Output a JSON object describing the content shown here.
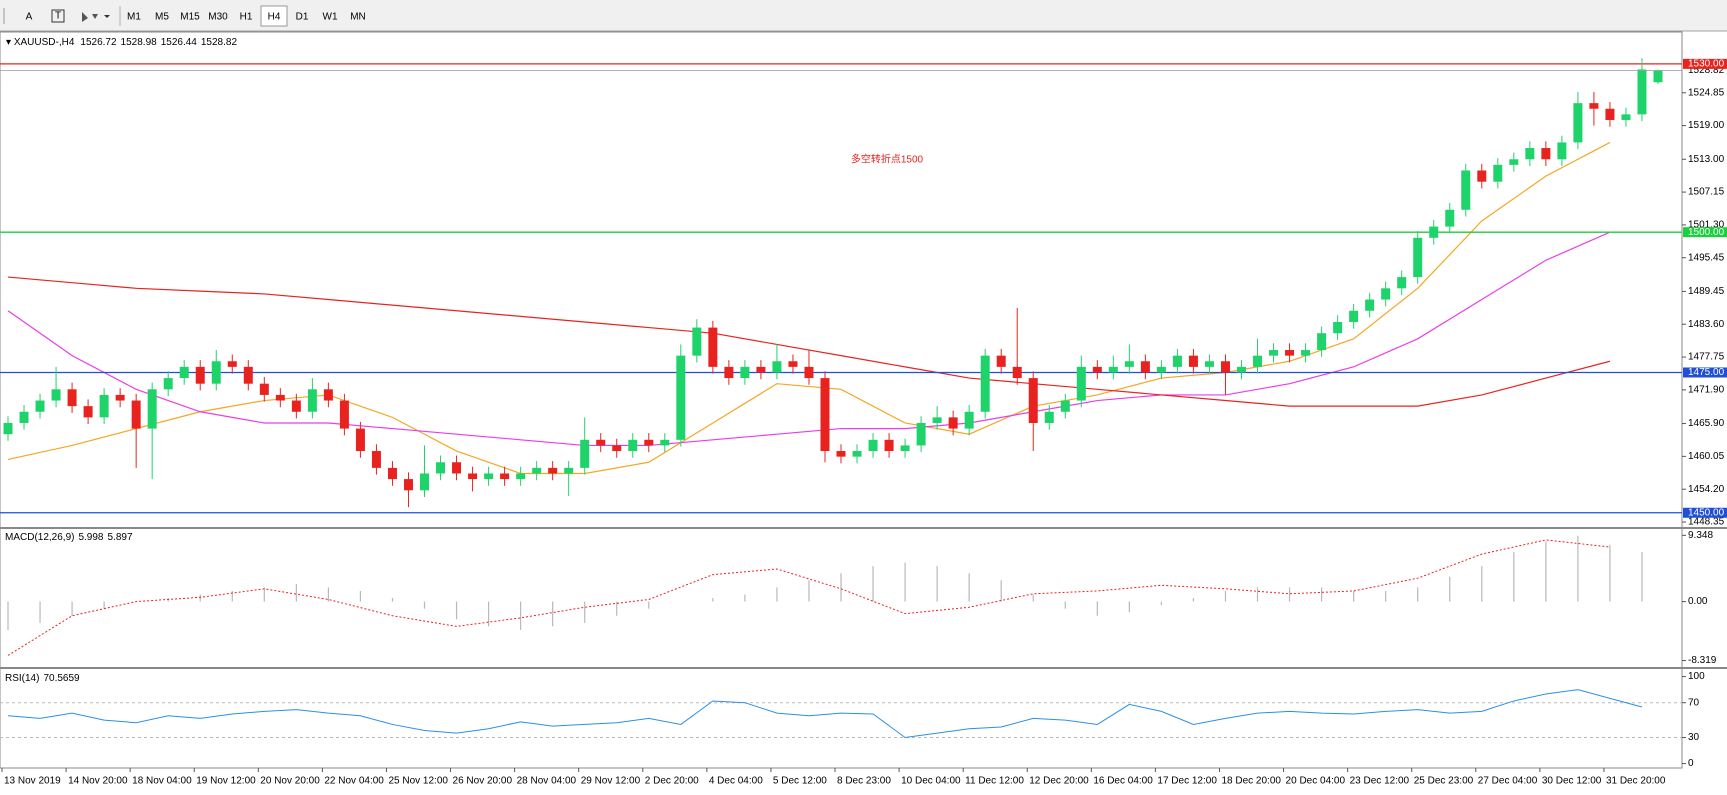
{
  "toolbar": {
    "text_tool": "A",
    "timeframes": [
      "M1",
      "M5",
      "M15",
      "M30",
      "H1",
      "H4",
      "D1",
      "W1",
      "MN"
    ],
    "active": "H4"
  },
  "chart_data": [
    {
      "type": "candlestick",
      "title": "XAUUSD-,H4",
      "annotation": "多空转折点1500",
      "categories": [
        "13 Nov 2019",
        null,
        null,
        null,
        "14 Nov 20:00",
        null,
        null,
        null,
        "18 Nov 04:00",
        null,
        null,
        null,
        "19 Nov 12:00",
        null,
        null,
        null,
        "20 Nov 20:00",
        null,
        null,
        null,
        "22 Nov 04:00",
        null,
        null,
        null,
        "25 Nov 12:00",
        null,
        null,
        null,
        "26 Nov 20:00",
        null,
        null,
        null,
        "28 Nov 04:00",
        null,
        null,
        null,
        "29 Nov 12:00",
        null,
        null,
        null,
        "2 Dec 20:00",
        null,
        null,
        null,
        "4 Dec 04:00",
        null,
        null,
        null,
        "5 Dec 12:00",
        null,
        null,
        null,
        "8 Dec 23:00",
        null,
        null,
        null,
        "10 Dec 04:00",
        null,
        null,
        null,
        "11 Dec 12:00",
        null,
        null,
        null,
        "12 Dec 20:00",
        null,
        null,
        null,
        "16 Dec 04:00",
        null,
        null,
        null,
        "17 Dec 12:00",
        null,
        null,
        null,
        "18 Dec 20:00",
        null,
        null,
        null,
        "20 Dec 04:00",
        null,
        null,
        null,
        "23 Dec 12:00",
        null,
        null,
        null,
        "25 Dec 23:00",
        null,
        null,
        null,
        "27 Dec 04:00",
        null,
        null,
        null,
        "30 Dec 12:00",
        null,
        null,
        null,
        "31 Dec 20:00",
        null,
        null,
        null
      ],
      "candles": [
        [
          1464,
          1467.2,
          1462.8,
          1466
        ],
        [
          1466,
          1469.2,
          1464.8,
          1468
        ],
        [
          1468,
          1471.2,
          1466.8,
          1470
        ],
        [
          1470,
          1476,
          1468.8,
          1472
        ],
        [
          1472,
          1473.2,
          1467.8,
          1469
        ],
        [
          1469,
          1470.2,
          1465.8,
          1467
        ],
        [
          1467,
          1472.2,
          1465.8,
          1471
        ],
        [
          1471,
          1472.2,
          1468.8,
          1470
        ],
        [
          1470,
          1471.2,
          1458,
          1465
        ],
        [
          1465,
          1473.2,
          1456,
          1472
        ],
        [
          1472,
          1475.2,
          1470.8,
          1474
        ],
        [
          1474,
          1477.2,
          1472.8,
          1476
        ],
        [
          1476,
          1477.2,
          1471.8,
          1473
        ],
        [
          1473,
          1479,
          1471.8,
          1477
        ],
        [
          1477,
          1478.2,
          1474.8,
          1476
        ],
        [
          1476,
          1477.2,
          1471.8,
          1473
        ],
        [
          1473,
          1474.2,
          1469.8,
          1471
        ],
        [
          1471,
          1472.2,
          1468.8,
          1470
        ],
        [
          1470,
          1471.2,
          1466.8,
          1468
        ],
        [
          1468,
          1474,
          1466.8,
          1472
        ],
        [
          1472,
          1473.2,
          1468.8,
          1470
        ],
        [
          1470,
          1471.2,
          1463.8,
          1465
        ],
        [
          1465,
          1466.2,
          1459.8,
          1461
        ],
        [
          1461,
          1462.2,
          1456.8,
          1458
        ],
        [
          1458,
          1459.2,
          1454.8,
          1456
        ],
        [
          1456,
          1457.2,
          1451,
          1454
        ],
        [
          1454,
          1462,
          1452.8,
          1457
        ],
        [
          1457,
          1460.2,
          1455.8,
          1459
        ],
        [
          1459,
          1460.2,
          1455.8,
          1457
        ],
        [
          1457,
          1458.2,
          1453.8,
          1456
        ],
        [
          1456,
          1458.2,
          1454.8,
          1457
        ],
        [
          1457,
          1458.2,
          1454.8,
          1456
        ],
        [
          1456,
          1458.2,
          1454.8,
          1457
        ],
        [
          1457,
          1459.2,
          1455.8,
          1458
        ],
        [
          1458,
          1459.2,
          1455.8,
          1457
        ],
        [
          1457,
          1459.2,
          1453,
          1458
        ],
        [
          1458,
          1467,
          1456.8,
          1463
        ],
        [
          1463,
          1464.2,
          1460.8,
          1462
        ],
        [
          1462,
          1463.2,
          1459.8,
          1461
        ],
        [
          1461,
          1464.2,
          1459.8,
          1463
        ],
        [
          1463,
          1464.2,
          1460.8,
          1462
        ],
        [
          1462,
          1464.2,
          1460.8,
          1463
        ],
        [
          1463,
          1480,
          1461.8,
          1478
        ],
        [
          1478,
          1484.5,
          1476.8,
          1483
        ],
        [
          1483,
          1484.2,
          1474.8,
          1476
        ],
        [
          1476,
          1477.2,
          1472.8,
          1474
        ],
        [
          1474,
          1477.2,
          1472.8,
          1476
        ],
        [
          1476,
          1477.2,
          1473.8,
          1475
        ],
        [
          1475,
          1480,
          1473.8,
          1477
        ],
        [
          1477,
          1478.2,
          1474.8,
          1476
        ],
        [
          1476,
          1479,
          1472.8,
          1474
        ],
        [
          1474,
          1475.2,
          1459,
          1461
        ],
        [
          1461,
          1462.2,
          1458.8,
          1460
        ],
        [
          1460,
          1462.2,
          1458.8,
          1461
        ],
        [
          1461,
          1464.2,
          1459.8,
          1463
        ],
        [
          1463,
          1464.2,
          1459.8,
          1461
        ],
        [
          1461,
          1463.2,
          1459.8,
          1462
        ],
        [
          1462,
          1467.2,
          1460.8,
          1466
        ],
        [
          1466,
          1469,
          1464.8,
          1467
        ],
        [
          1467,
          1468.2,
          1463.8,
          1465
        ],
        [
          1465,
          1469.2,
          1463.8,
          1468
        ],
        [
          1468,
          1479.2,
          1466.8,
          1478
        ],
        [
          1478,
          1479.2,
          1474.8,
          1476
        ],
        [
          1476,
          1486.5,
          1472.8,
          1474
        ],
        [
          1474,
          1475.2,
          1461,
          1466
        ],
        [
          1466,
          1469.2,
          1464.8,
          1468
        ],
        [
          1468,
          1471.2,
          1466.8,
          1470
        ],
        [
          1470,
          1478,
          1468.8,
          1476
        ],
        [
          1476,
          1477.2,
          1473.8,
          1475
        ],
        [
          1475,
          1478,
          1473.8,
          1476
        ],
        [
          1476,
          1480,
          1474.8,
          1477
        ],
        [
          1477,
          1478.2,
          1473.8,
          1475
        ],
        [
          1475,
          1477.2,
          1473.8,
          1476
        ],
        [
          1476,
          1479.2,
          1474.8,
          1478
        ],
        [
          1478,
          1479.2,
          1474.8,
          1476
        ],
        [
          1476,
          1478.2,
          1474.8,
          1477
        ],
        [
          1477,
          1478.2,
          1471,
          1475
        ],
        [
          1475,
          1477.2,
          1473.8,
          1476
        ],
        [
          1476,
          1481,
          1474.8,
          1478
        ],
        [
          1478,
          1480.2,
          1476.8,
          1479
        ],
        [
          1479,
          1480.2,
          1476.8,
          1478
        ],
        [
          1478,
          1480.2,
          1476.8,
          1479
        ],
        [
          1479,
          1483.2,
          1477.8,
          1482
        ],
        [
          1482,
          1485.2,
          1480.8,
          1484
        ],
        [
          1484,
          1487.2,
          1482.8,
          1486
        ],
        [
          1486,
          1489.2,
          1484.8,
          1488
        ],
        [
          1488,
          1491.2,
          1486.8,
          1490
        ],
        [
          1490,
          1493.2,
          1488.8,
          1492
        ],
        [
          1492,
          1500.2,
          1490.8,
          1499
        ],
        [
          1499,
          1502.2,
          1497.8,
          1501
        ],
        [
          1501,
          1505.2,
          1499.8,
          1504
        ],
        [
          1504,
          1512.2,
          1502.8,
          1511
        ],
        [
          1511,
          1512.2,
          1507.8,
          1509
        ],
        [
          1509,
          1513.2,
          1507.8,
          1512
        ],
        [
          1512,
          1514.2,
          1510.8,
          1513
        ],
        [
          1513,
          1516.2,
          1511.8,
          1515
        ],
        [
          1515,
          1516.2,
          1511.8,
          1513
        ],
        [
          1513,
          1517.2,
          1511.8,
          1516
        ],
        [
          1516,
          1525,
          1514.8,
          1523
        ],
        [
          1523,
          1525,
          1519,
          1522
        ],
        [
          1522,
          1523.2,
          1518.8,
          1520
        ],
        [
          1520,
          1522.2,
          1518.8,
          1521
        ],
        [
          1521,
          1531,
          1519.8,
          1529
        ],
        [
          1526.72,
          1528.98,
          1526.44,
          1528.82
        ]
      ],
      "colors": {
        "up": "#1fd36b",
        "down": "#e8231f"
      },
      "moving_averages": [
        {
          "color": "#f5a623",
          "values": [
            1459.5,
            1462,
            1465,
            1468,
            1470,
            1471,
            1467,
            1461,
            1457,
            1457,
            1459,
            1466,
            1473,
            1472,
            1466,
            1464,
            1469,
            1471,
            1474,
            1475,
            1477,
            1481,
            1490,
            1502,
            1510,
            1516
          ]
        },
        {
          "color": "#e83ee8",
          "values": [
            1486,
            1478,
            1472,
            1468,
            1466,
            1466,
            1465,
            1464,
            1463,
            1462,
            1462,
            1463,
            1464,
            1465,
            1465,
            1466,
            1468,
            1470,
            1471,
            1471,
            1473,
            1476,
            1481,
            1488,
            1495,
            1500
          ]
        },
        {
          "color": "#e8231f",
          "values": [
            1492,
            1491,
            1490,
            1489.5,
            1489,
            1488,
            1487,
            1486,
            1485,
            1484,
            1483,
            1482,
            1480,
            1478,
            1476,
            1474,
            1473,
            1472,
            1471,
            1470,
            1469,
            1469,
            1469,
            1471,
            1474,
            1477
          ]
        }
      ],
      "levels": [
        {
          "value": 1530,
          "label": "1530.00",
          "color": "#e8231f"
        },
        {
          "value": 1500,
          "label": "1500.00",
          "color": "#19d13c"
        },
        {
          "value": 1475,
          "label": "1475.00",
          "color": "#1f4fd6"
        },
        {
          "value": 1450,
          "label": "1450.00",
          "color": "#1f4fd6"
        }
      ],
      "ylim": [
        1447.64,
        1535.5
      ],
      "yticks": [
        1524.85,
        {
          "value": 1519,
          "label": "1519.00"
        },
        {
          "value": 1513,
          "label": "1513.00"
        },
        1507.15,
        {
          "value": 1501.3,
          "label": "1501.30"
        },
        1495.45,
        1489.45,
        {
          "value": 1483.6,
          "label": "1483.60"
        },
        1477.75,
        {
          "value": 1471.9,
          "label": "1471.90"
        },
        {
          "value": 1465.9,
          "label": "1465.90"
        },
        1460.05,
        {
          "value": 1454.2,
          "label": "1454.20"
        },
        1448.35
      ]
    },
    {
      "type": "macd",
      "title": "MACD(12,26,9)",
      "macd_value": 5.998,
      "signal_value": 5.897,
      "histogram": [
        -4,
        -3,
        -2,
        -1,
        0,
        0.5,
        1,
        1.5,
        2,
        2.5,
        2,
        1.5,
        0.5,
        -1,
        -2.5,
        -3.5,
        -4,
        -3.5,
        -3,
        -2,
        -1,
        0,
        0.5,
        1,
        2,
        3,
        4,
        5,
        5.5,
        5,
        4,
        3,
        1,
        -1,
        -2,
        -1.5,
        -0.5,
        0.5,
        1.5,
        2,
        2,
        2,
        1.5,
        1.5,
        2,
        3.5,
        5,
        7,
        8.5,
        9.3,
        8,
        7
      ],
      "signal": [
        -7.6,
        -2,
        0,
        0.6,
        1.8,
        0.3,
        -2,
        -3.5,
        -2.3,
        -0.8,
        0.3,
        3.8,
        4.6,
        1.8,
        -1.7,
        -0.8,
        1.1,
        1.5,
        2.3,
        1.8,
        1.1,
        1.5,
        3.3,
        6.7,
        8.7,
        7.7
      ],
      "ylim": [
        -9.09,
        10.1
      ],
      "yticks": [
        9.348,
        {
          "value": 0,
          "label": "0.00"
        },
        -8.319
      ]
    },
    {
      "type": "rsi",
      "title": "RSI(14)",
      "rsi_value": 70.5659,
      "color": "#2b8fe8",
      "values": [
        55,
        52,
        58,
        50,
        47,
        55,
        52,
        57,
        60,
        62,
        58,
        55,
        45,
        38,
        35,
        40,
        48,
        43,
        45,
        47,
        52,
        45,
        72,
        70,
        58,
        55,
        58,
        57,
        30,
        35,
        40,
        42,
        52,
        50,
        45,
        68,
        60,
        45,
        52,
        58,
        60,
        58,
        57,
        60,
        62,
        58,
        60,
        72,
        80,
        85,
        75,
        65
      ],
      "levels": [
        70,
        30
      ],
      "ylim": [
        -5.1,
        107.6
      ],
      "yticks": [
        100,
        70,
        30,
        0
      ]
    }
  ]
}
